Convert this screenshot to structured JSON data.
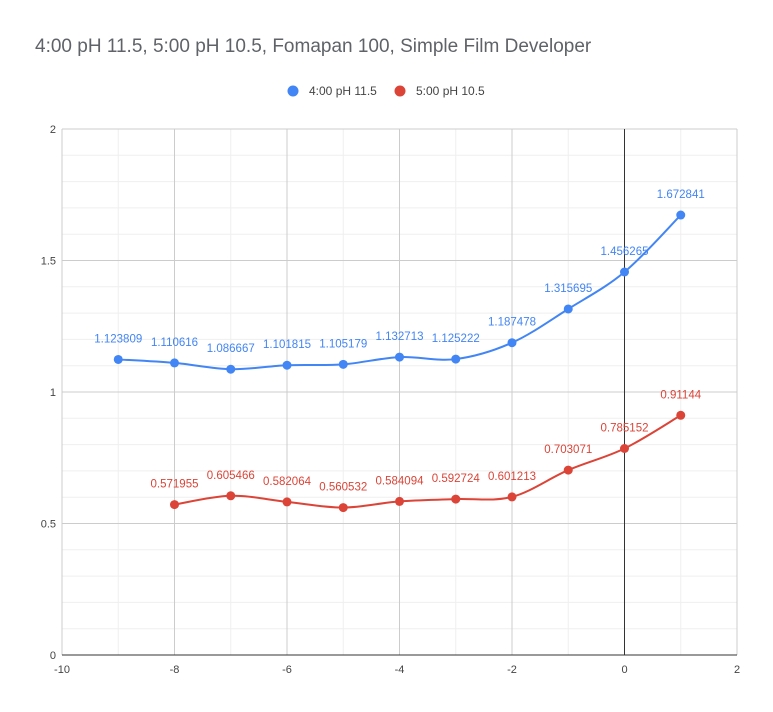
{
  "chart_data": {
    "type": "line",
    "title": "4:00 pH 11.5, 5:00 pH 10.5, Fomapan 100, Simple Film Developer",
    "xlabel": "",
    "ylabel": "",
    "xlim": [
      -10,
      2
    ],
    "ylim": [
      0,
      2
    ],
    "x_ticks": [
      "-10",
      "-8",
      "-6",
      "-4",
      "-2",
      "0",
      "2"
    ],
    "y_ticks": [
      "0",
      "0.5",
      "1",
      "1.5",
      "2"
    ],
    "grid": true,
    "legend_position": "top",
    "series": [
      {
        "name": "4:00 pH 11.5",
        "color": "#4285f4",
        "x": [
          -9,
          -8,
          -7,
          -6,
          -5,
          -4,
          -3,
          -2,
          -1,
          0,
          1
        ],
        "values": [
          1.123809,
          1.110616,
          1.086667,
          1.101815,
          1.105179,
          1.132713,
          1.125222,
          1.187478,
          1.315695,
          1.456265,
          1.672841
        ],
        "labels": [
          "1.123809",
          "1.110616",
          "1.086667",
          "1.101815",
          "1.105179",
          "1.132713",
          "1.125222",
          "1.187478",
          "1.315695",
          "1.456265",
          "1.672841"
        ]
      },
      {
        "name": "5:00 pH 10.5",
        "color": "#db4437",
        "x": [
          -8,
          -7,
          -6,
          -5,
          -4,
          -3,
          -2,
          -1,
          0,
          1
        ],
        "values": [
          0.571955,
          0.605466,
          0.582064,
          0.560532,
          0.584094,
          0.592724,
          0.601213,
          0.703071,
          0.785152,
          0.91144
        ],
        "labels": [
          "0.571955",
          "0.605466",
          "0.582064",
          "0.560532",
          "0.584094",
          "0.592724",
          "0.601213",
          "0.703071",
          "0.785152",
          "0.91144"
        ]
      }
    ]
  }
}
